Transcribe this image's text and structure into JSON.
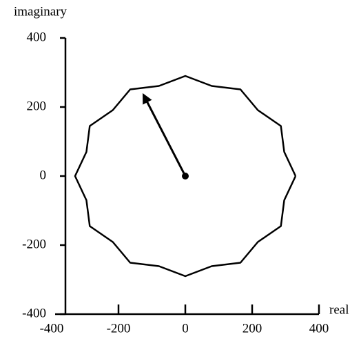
{
  "chart_data": {
    "type": "line",
    "x_label": "real",
    "y_label": "imaginary",
    "x": [
      330,
      296,
      286,
      217,
      165,
      79,
      0,
      -79,
      -165,
      -217,
      -286,
      -296,
      -330,
      -296,
      -286,
      -217,
      -165,
      -79,
      0,
      79,
      165,
      217,
      286,
      296,
      330
    ],
    "series": [
      {
        "color": "#000000",
        "values": [
          0,
          70,
          145,
          191,
          251,
          261,
          290,
          261,
          251,
          191,
          145,
          70,
          0,
          -70,
          -145,
          -191,
          -251,
          -261,
          -290,
          -261,
          -251,
          -191,
          -145,
          -70,
          0
        ]
      }
    ],
    "arrow": {
      "x": [
        0,
        -125
      ],
      "y": [
        0,
        235
      ]
    },
    "xlim": [
      -400,
      400
    ],
    "ylim": [
      -400,
      400
    ],
    "xticks": [
      -400,
      -200,
      0,
      200,
      400
    ],
    "yticks": [
      -400,
      -200,
      0,
      200,
      400
    ]
  }
}
